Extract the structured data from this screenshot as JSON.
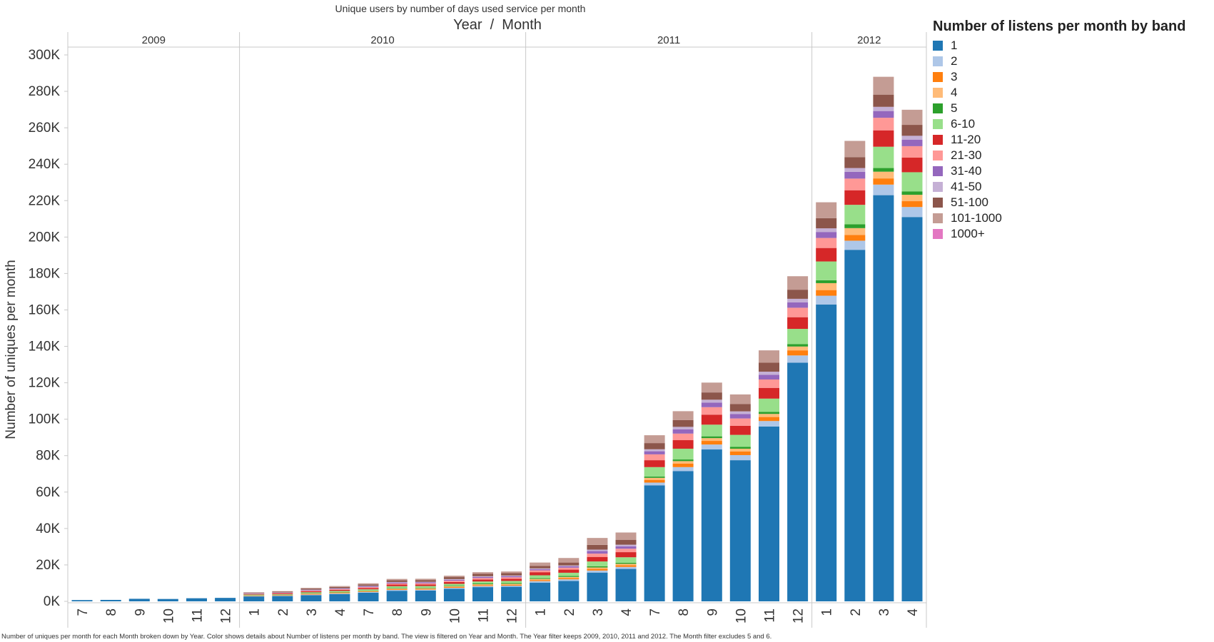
{
  "chart_data": {
    "type": "bar",
    "stacked": true,
    "title": "Unique users by number of days used service per month",
    "column_header": "Year  /  Month",
    "ylabel": "Number of uniques per month",
    "ylim": [
      0,
      310000
    ],
    "y_ticks": [
      {
        "value": 0,
        "label": "0K"
      },
      {
        "value": 20000,
        "label": "20K"
      },
      {
        "value": 40000,
        "label": "40K"
      },
      {
        "value": 60000,
        "label": "60K"
      },
      {
        "value": 80000,
        "label": "80K"
      },
      {
        "value": 100000,
        "label": "100K"
      },
      {
        "value": 120000,
        "label": "120K"
      },
      {
        "value": 140000,
        "label": "140K"
      },
      {
        "value": 160000,
        "label": "160K"
      },
      {
        "value": 180000,
        "label": "180K"
      },
      {
        "value": 200000,
        "label": "200K"
      },
      {
        "value": 220000,
        "label": "220K"
      },
      {
        "value": 240000,
        "label": "240K"
      },
      {
        "value": 260000,
        "label": "260K"
      },
      {
        "value": 280000,
        "label": "280K"
      },
      {
        "value": 300000,
        "label": "300K"
      }
    ],
    "grid": false,
    "legend_position": "right",
    "legend_title": "Number of listens per month by band",
    "years": [
      {
        "label": "2009",
        "months": [
          "7",
          "8",
          "9",
          "10",
          "11",
          "12"
        ]
      },
      {
        "label": "2010",
        "months": [
          "1",
          "2",
          "3",
          "4",
          "7",
          "8",
          "9",
          "10",
          "11",
          "12"
        ]
      },
      {
        "label": "2011",
        "months": [
          "1",
          "2",
          "3",
          "4",
          "7",
          "8",
          "9",
          "10",
          "11",
          "12"
        ]
      },
      {
        "label": "2012",
        "months": [
          "1",
          "2",
          "3",
          "4"
        ]
      }
    ],
    "series": [
      {
        "name": "1",
        "color": "#1f77b4",
        "values": [
          700,
          800,
          1400,
          1300,
          1700,
          1900,
          2700,
          2900,
          3400,
          4000,
          4700,
          5800,
          5900,
          6900,
          7800,
          8000,
          10300,
          11200,
          15800,
          17800,
          63700,
          71500,
          83400,
          77500,
          96000,
          131000,
          163000,
          193000,
          223000,
          211000
        ]
      },
      {
        "name": "2",
        "color": "#aec7e8",
        "values": [
          0,
          0,
          0,
          0,
          0,
          0,
          200,
          200,
          300,
          300,
          400,
          500,
          500,
          500,
          600,
          600,
          800,
          900,
          1100,
          1100,
          1500,
          2200,
          2700,
          2800,
          3000,
          4000,
          4800,
          5000,
          5800,
          5500
        ]
      },
      {
        "name": "3",
        "color": "#ff7f0e",
        "values": [
          0,
          0,
          0,
          0,
          0,
          0,
          200,
          200,
          300,
          300,
          300,
          400,
          400,
          500,
          500,
          500,
          600,
          700,
          900,
          900,
          1500,
          1900,
          2000,
          2000,
          2200,
          2800,
          3100,
          3200,
          3400,
          3200
        ]
      },
      {
        "name": "4",
        "color": "#ffbb78",
        "values": [
          0,
          0,
          0,
          0,
          0,
          0,
          200,
          200,
          300,
          300,
          300,
          400,
          400,
          400,
          500,
          500,
          600,
          600,
          800,
          800,
          1100,
          1400,
          1500,
          1500,
          1700,
          2100,
          3800,
          3700,
          3700,
          3500
        ]
      },
      {
        "name": "5",
        "color": "#2ca02c",
        "values": [
          0,
          0,
          0,
          0,
          0,
          0,
          100,
          100,
          200,
          200,
          200,
          300,
          300,
          300,
          400,
          400,
          400,
          500,
          600,
          600,
          700,
          900,
          1000,
          1000,
          1100,
          1300,
          1600,
          2100,
          2000,
          1900
        ]
      },
      {
        "name": "6-10",
        "color": "#98df8a",
        "values": [
          0,
          0,
          0,
          0,
          0,
          0,
          300,
          300,
          500,
          600,
          700,
          900,
          900,
          1000,
          1100,
          1200,
          1600,
          1800,
          2700,
          3000,
          5200,
          5900,
          6400,
          6600,
          7300,
          8400,
          10300,
          10700,
          11700,
          10500
        ]
      },
      {
        "name": "11-20",
        "color": "#d62728",
        "values": [
          0,
          0,
          0,
          0,
          0,
          0,
          300,
          400,
          500,
          600,
          700,
          900,
          900,
          1000,
          1100,
          1200,
          1700,
          1700,
          2500,
          2800,
          3800,
          4700,
          5500,
          5000,
          5900,
          6400,
          7400,
          8000,
          9000,
          8000
        ]
      },
      {
        "name": "21-30",
        "color": "#ff9896",
        "values": [
          0,
          0,
          0,
          0,
          0,
          0,
          200,
          300,
          400,
          400,
          500,
          600,
          600,
          700,
          800,
          800,
          1000,
          1100,
          1800,
          1900,
          3200,
          3600,
          4100,
          4000,
          4600,
          5200,
          5500,
          6400,
          6900,
          6300
        ]
      },
      {
        "name": "31-40",
        "color": "#9467bd",
        "values": [
          0,
          0,
          0,
          0,
          0,
          0,
          200,
          200,
          300,
          300,
          400,
          500,
          500,
          500,
          600,
          600,
          600,
          700,
          1400,
          1300,
          1700,
          2300,
          2500,
          2400,
          2600,
          3000,
          3300,
          3700,
          3700,
          3600
        ]
      },
      {
        "name": "41-50",
        "color": "#c5b0d5",
        "values": [
          0,
          0,
          0,
          0,
          0,
          0,
          100,
          100,
          200,
          200,
          300,
          300,
          300,
          400,
          400,
          400,
          500,
          500,
          800,
          900,
          1100,
          1400,
          1600,
          1500,
          1700,
          1900,
          2000,
          2100,
          2300,
          2100
        ]
      },
      {
        "name": "51-100",
        "color": "#8c564b",
        "values": [
          0,
          0,
          0,
          0,
          0,
          0,
          300,
          400,
          600,
          700,
          800,
          1000,
          1000,
          1100,
          1300,
          1300,
          1400,
          1600,
          2600,
          2700,
          3400,
          3700,
          4000,
          4000,
          4900,
          5000,
          5600,
          6000,
          6700,
          6000
        ]
      },
      {
        "name": "101-1000",
        "color": "#c49c94",
        "values": [
          0,
          0,
          0,
          0,
          0,
          0,
          200,
          300,
          400,
          500,
          600,
          700,
          700,
          800,
          900,
          900,
          1800,
          2500,
          3800,
          4000,
          4300,
          4900,
          5400,
          5300,
          6800,
          7400,
          8700,
          8900,
          9800,
          8300
        ]
      },
      {
        "name": "1000+",
        "color": "#e377c2",
        "values": [
          0,
          0,
          0,
          0,
          0,
          0,
          0,
          0,
          0,
          0,
          0,
          0,
          0,
          0,
          0,
          0,
          0,
          0,
          0,
          0,
          0,
          0,
          0,
          0,
          0,
          0,
          0,
          0,
          0,
          0
        ]
      }
    ]
  },
  "footer_text": "Number of uniques per month for each Month broken down by Year.  Color shows details about Number of listens per month by band. The view is filtered on Year and Month. The Year filter keeps 2009, 2010, 2011 and 2012. The Month filter excludes 5 and 6."
}
